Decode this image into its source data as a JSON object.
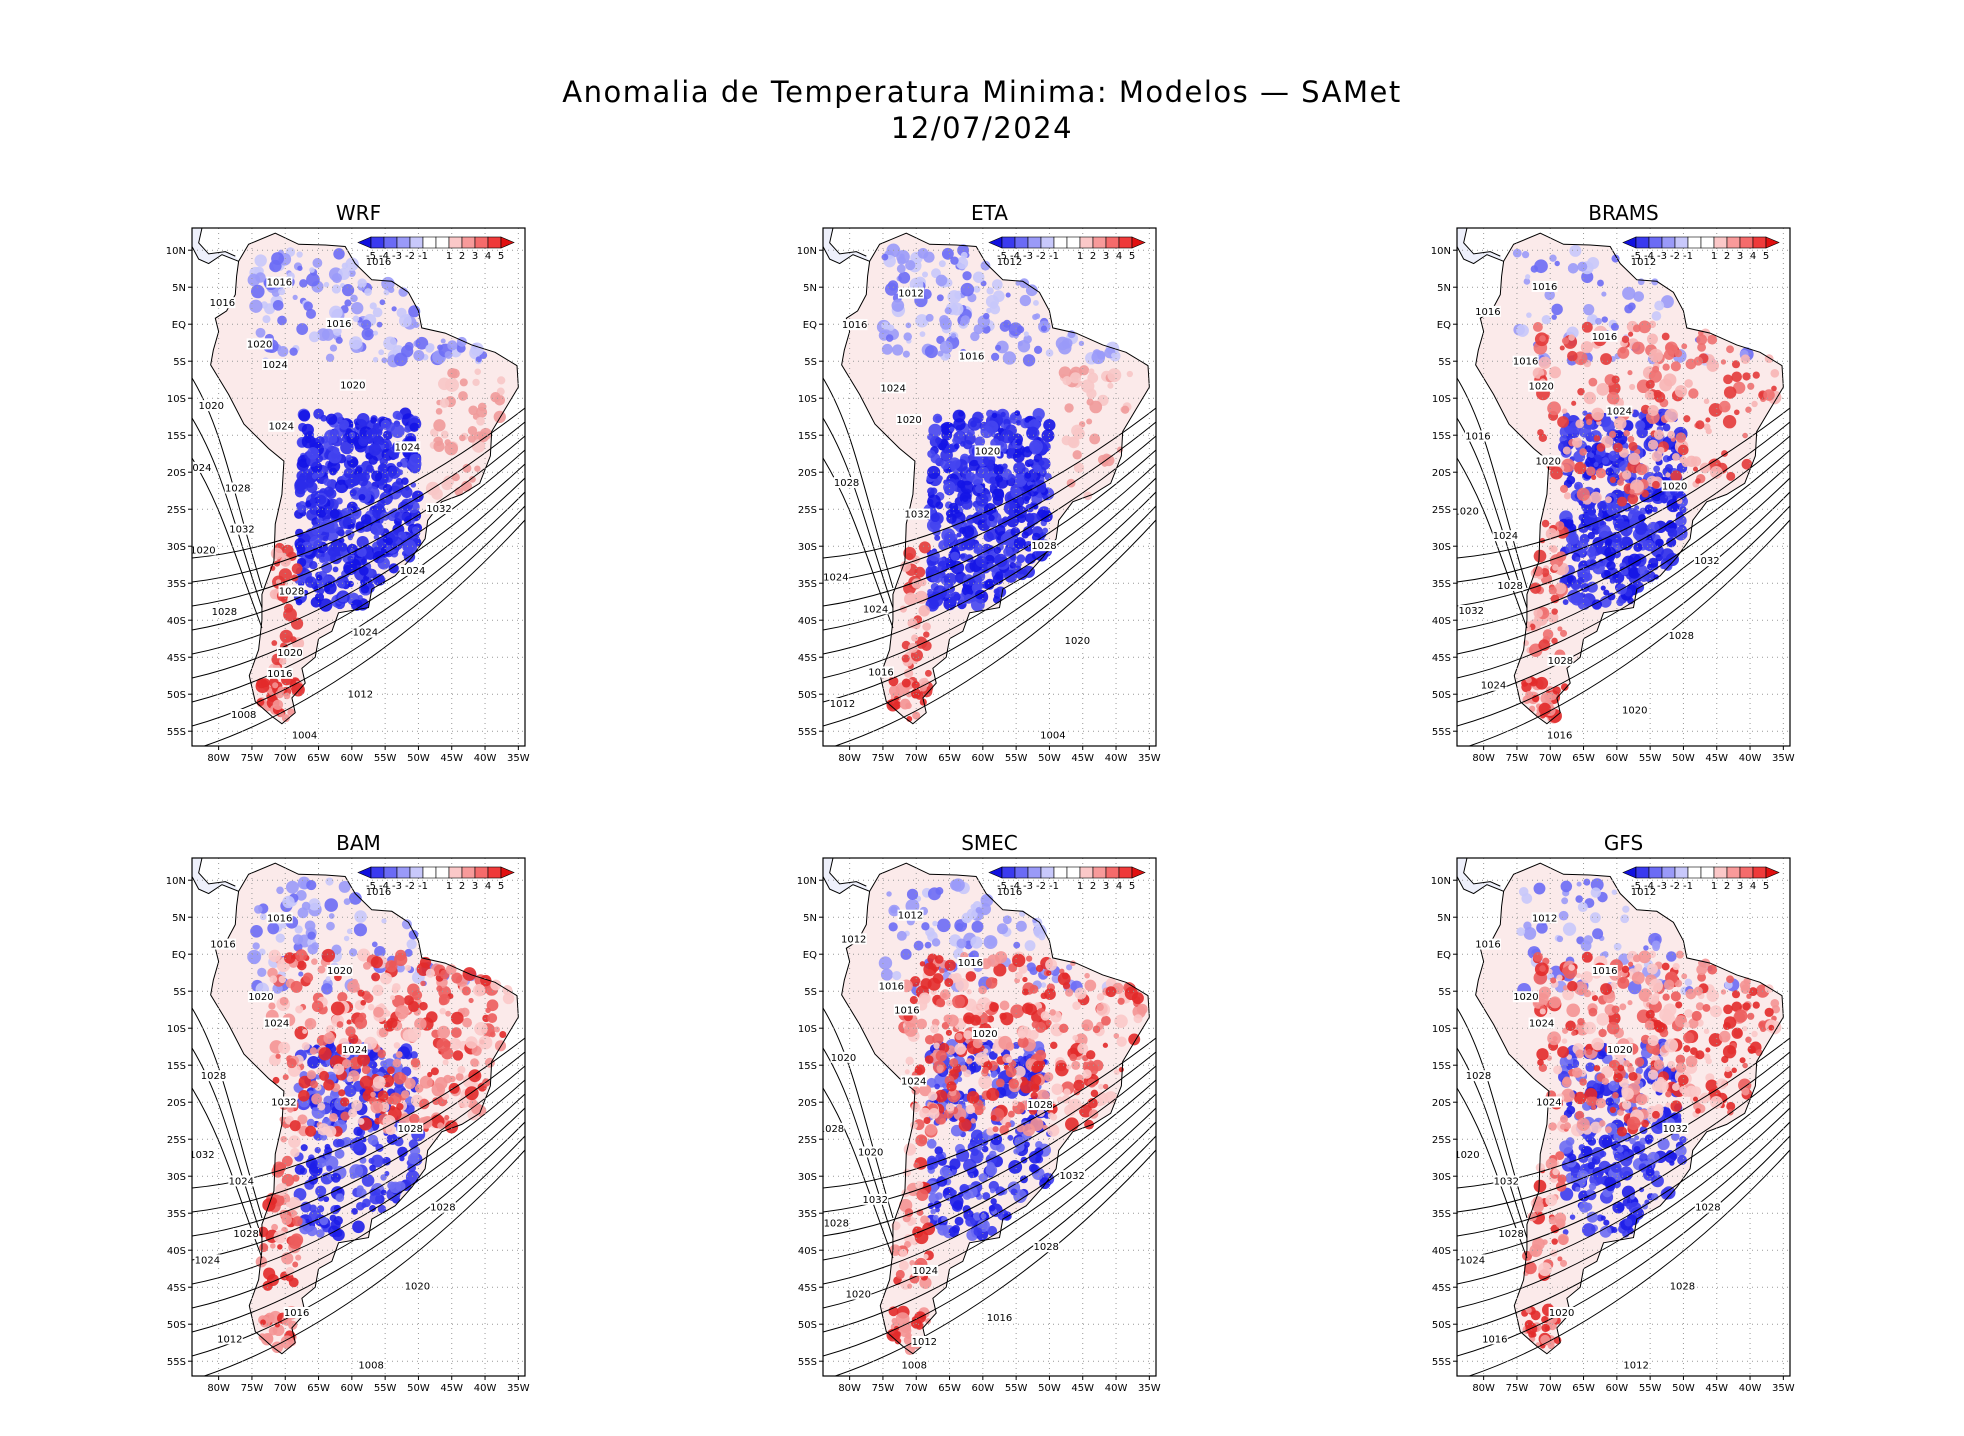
{
  "title": {
    "line1": "Anomalia de Temperatura Minima: Modelos — SAMet",
    "line2": "12/07/2024"
  },
  "colorbar": {
    "labels": [
      "-5",
      "-4",
      "-3",
      "-2",
      "-1",
      "1",
      "2",
      "3",
      "4",
      "5"
    ],
    "colors": [
      "#1010e0",
      "#3a3aef",
      "#6b6bf5",
      "#9a9af8",
      "#c8c8fb",
      "#ffffff",
      "#ffffff",
      "#fbc8c8",
      "#f89a9a",
      "#f56b6b",
      "#ef3a3a",
      "#e01010"
    ]
  },
  "lat_labels": [
    "10N",
    "5N",
    "EQ",
    "5S",
    "10S",
    "15S",
    "20S",
    "25S",
    "30S",
    "35S",
    "40S",
    "45S",
    "50S",
    "55S"
  ],
  "lon_labels": [
    "80W",
    "75W",
    "70W",
    "65W",
    "60W",
    "55W",
    "50W",
    "45W",
    "40W",
    "35W"
  ],
  "panels": [
    {
      "name": "WRF",
      "isobars": [
        "1016",
        "1016",
        "1016",
        "1016",
        "1020",
        "1024",
        "1020",
        "1020",
        "1024",
        "1024",
        "1024",
        "1028",
        "1032",
        "1032",
        "1020",
        "1024",
        "1028",
        "1028",
        "1024",
        "1020",
        "1016",
        "1012",
        "1008",
        "1004"
      ],
      "pattern": "cold"
    },
    {
      "name": "ETA",
      "isobars": [
        "1012",
        "1012",
        "1016",
        "1016",
        "1024",
        "1020",
        "1020",
        "1028",
        "1032",
        "1028",
        "1024",
        "1024",
        "1020",
        "1016",
        "1012",
        "1004"
      ],
      "pattern": "cold"
    },
    {
      "name": "BRAMS",
      "isobars": [
        "1012",
        "1016",
        "1016",
        "1016",
        "1016",
        "1020",
        "1024",
        "1016",
        "1020",
        "1020",
        "1020",
        "1024",
        "1032",
        "1028",
        "1032",
        "1028",
        "1028",
        "1024",
        "1020",
        "1016"
      ],
      "pattern": "mixed"
    },
    {
      "name": "BAM",
      "isobars": [
        "1016",
        "1016",
        "1016",
        "1020",
        "1020",
        "1024",
        "1024",
        "1028",
        "1032",
        "1028",
        "1032",
        "1024",
        "1028",
        "1028",
        "1024",
        "1020",
        "1016",
        "1012",
        "1008"
      ],
      "pattern": "warm"
    },
    {
      "name": "SMEC",
      "isobars": [
        "1016",
        "1012",
        "1012",
        "1016",
        "1016",
        "1016",
        "1020",
        "1020",
        "1024",
        "1028",
        "1028",
        "1020",
        "1032",
        "1032",
        "1028",
        "1028",
        "1024",
        "1020",
        "1016",
        "1012",
        "1008"
      ],
      "pattern": "warm"
    },
    {
      "name": "GFS",
      "isobars": [
        "1012",
        "1012",
        "1016",
        "1016",
        "1020",
        "1024",
        "1020",
        "1028",
        "1024",
        "1032",
        "1020",
        "1032",
        "1028",
        "1028",
        "1024",
        "1028",
        "1020",
        "1016",
        "1012"
      ],
      "pattern": "warm"
    }
  ]
}
